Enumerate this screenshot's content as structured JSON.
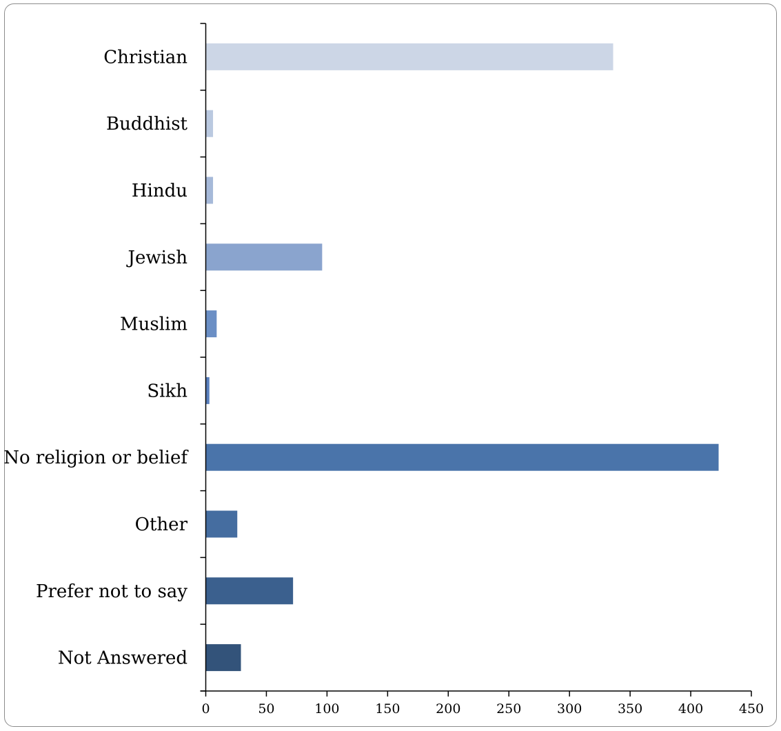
{
  "chart_data": {
    "type": "bar",
    "orientation": "horizontal",
    "title": "",
    "xlabel": "",
    "ylabel": "",
    "categories": [
      "Christian",
      "Buddhist",
      "Hindu",
      "Jewish",
      "Muslim",
      "Sikh",
      "No religion or belief",
      "Other",
      "Prefer not to say",
      "Not Answered"
    ],
    "values": [
      336,
      6,
      6,
      96,
      9,
      3,
      423,
      26,
      72,
      29
    ],
    "colors": [
      "#ccd6e6",
      "#bac9e0",
      "#a6b9d9",
      "#8aa4ce",
      "#6b8fc5",
      "#5a80bd",
      "#4a74aa",
      "#456da0",
      "#3b608e",
      "#33537a"
    ],
    "xlim": [
      0,
      450
    ],
    "xticks": [
      0,
      50,
      100,
      150,
      200,
      250,
      300,
      350,
      400,
      450
    ],
    "grid": false,
    "legend": "none"
  }
}
